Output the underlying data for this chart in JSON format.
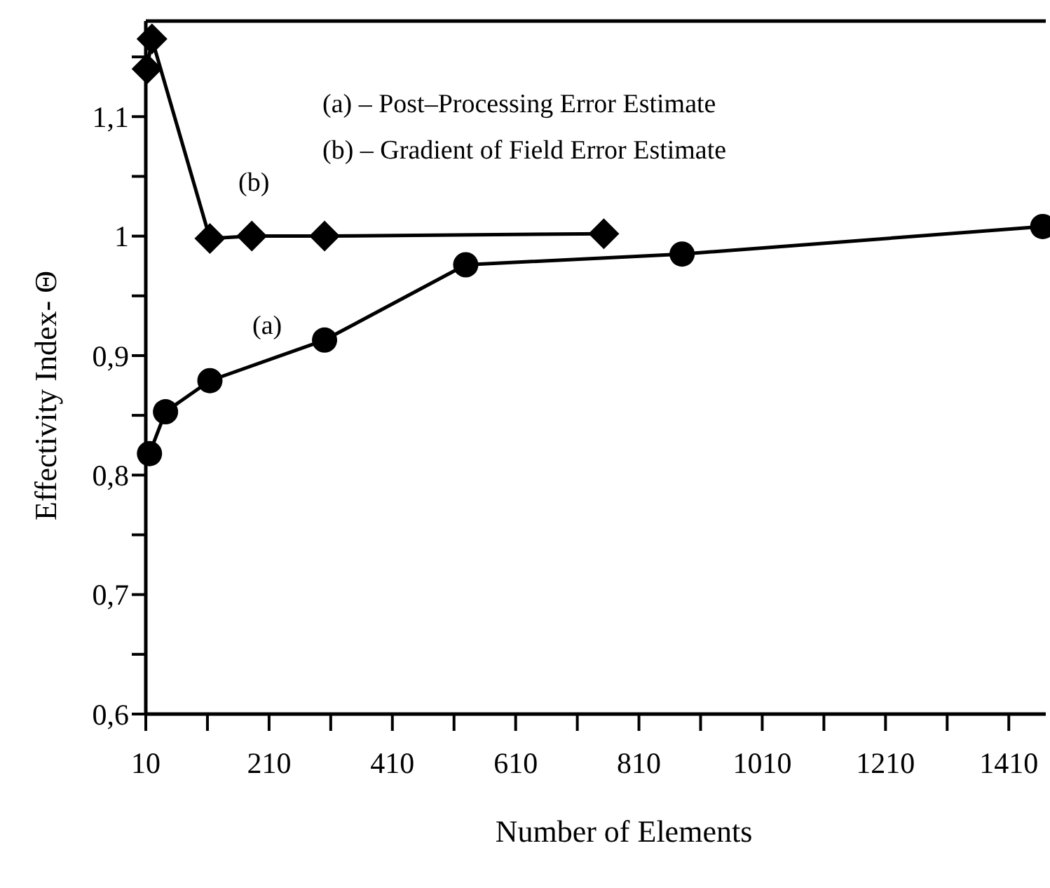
{
  "chart_data": {
    "type": "line",
    "xlabel": "Number of Elements",
    "ylabel": "Effectivity Index- Θ",
    "xlim": [
      10,
      1470
    ],
    "ylim": [
      0.6,
      1.18
    ],
    "xticks": [
      10,
      {
        "value": 110,
        "label": null
      },
      210,
      {
        "value": 310,
        "label": null
      },
      410,
      {
        "value": 510,
        "label": null
      },
      610,
      {
        "value": 710,
        "label": null
      },
      810,
      {
        "value": 910,
        "label": null
      },
      1010,
      {
        "value": 1110,
        "label": null
      },
      1210,
      {
        "value": 1310,
        "label": null
      },
      1410
    ],
    "yticks": [
      {
        "value": 0.6,
        "label": "0,6"
      },
      {
        "value": 0.65,
        "label": null
      },
      {
        "value": 0.7,
        "label": "0,7"
      },
      {
        "value": 0.75,
        "label": null
      },
      {
        "value": 0.8,
        "label": "0,8"
      },
      {
        "value": 0.85,
        "label": null
      },
      {
        "value": 0.9,
        "label": "0,9"
      },
      {
        "value": 0.95,
        "label": null
      },
      1,
      {
        "value": 1.05,
        "label": null
      },
      {
        "value": 1.1,
        "label": "1,1"
      },
      {
        "value": 1.15,
        "label": null
      }
    ],
    "series": [
      {
        "color": "#000000",
        "marker": "circle",
        "x": [
          16,
          42,
          114,
          300,
          529,
          880,
          1465
        ],
        "values": [
          0.818,
          0.853,
          0.879,
          0.913,
          0.976,
          0.985,
          1.008
        ]
      },
      {
        "color": "#000000",
        "marker": "diamond",
        "x": [
          12,
          20,
          114,
          182,
          300,
          753
        ],
        "values": [
          1.14,
          1.165,
          0.998,
          1.0,
          1.0,
          1.002
        ]
      }
    ],
    "annotations": [
      "(a) – Post–Processing Error Estimate",
      "(b) – Gradient of Field Error Estimate",
      "(a)",
      "(b)"
    ],
    "grid": false
  }
}
